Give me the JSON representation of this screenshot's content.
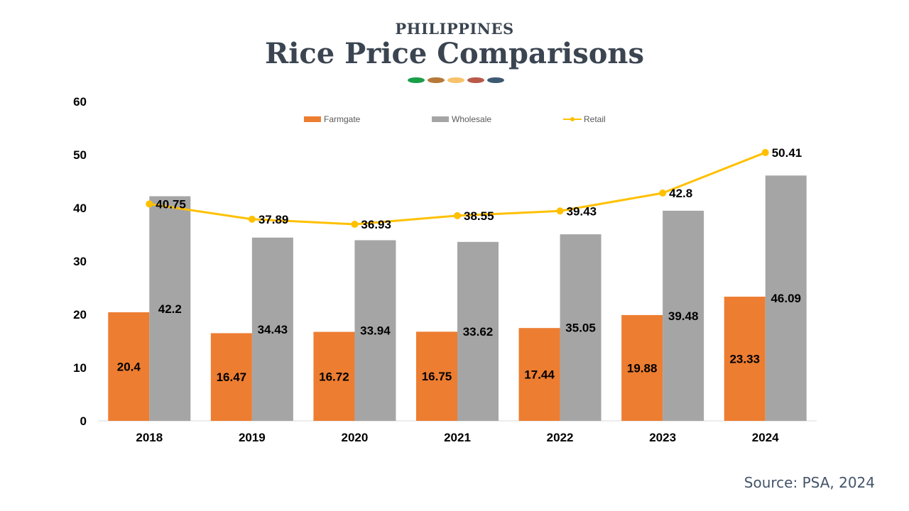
{
  "header": {
    "supertitle": "PHILIPPINES",
    "title": "Rice Price Comparisons",
    "dot_colors": [
      "#1b9e48",
      "#b5793a",
      "#f7c26b",
      "#b85a4a",
      "#3e5a73"
    ]
  },
  "footer": {
    "source": "Source: PSA, 2024"
  },
  "chart_data": {
    "type": "bar",
    "title": "",
    "xlabel": "",
    "ylabel": "",
    "categories": [
      "2018",
      "2019",
      "2020",
      "2021",
      "2022",
      "2023",
      "2024"
    ],
    "ylim": [
      0,
      60
    ],
    "yticks": [
      "0",
      "10",
      "20",
      "30",
      "40",
      "50",
      "60"
    ],
    "grid": false,
    "legend_position": "top",
    "series": [
      {
        "name": "Farmgate",
        "type": "bar",
        "color": "#ed7d31",
        "values": [
          20.4,
          16.47,
          16.72,
          16.75,
          17.44,
          19.88,
          23.33
        ],
        "labels": [
          "20.4",
          "16.47",
          "16.72",
          "16.75",
          "17.44",
          "19.88",
          "23.33"
        ]
      },
      {
        "name": "Wholesale",
        "type": "bar",
        "color": "#a5a5a5",
        "values": [
          42.2,
          34.43,
          33.94,
          33.62,
          35.05,
          39.48,
          46.09
        ],
        "labels": [
          "42.2",
          "34.43",
          "33.94",
          "33.62",
          "35.05",
          "39.48",
          "46.09"
        ]
      },
      {
        "name": "Retail",
        "type": "line",
        "color": "#ffc000",
        "values": [
          40.75,
          37.89,
          36.93,
          38.55,
          39.43,
          42.8,
          50.41
        ],
        "labels": [
          "40.75",
          "37.89",
          "36.93",
          "38.55",
          "39.43",
          "42.8",
          "50.41"
        ]
      }
    ]
  }
}
